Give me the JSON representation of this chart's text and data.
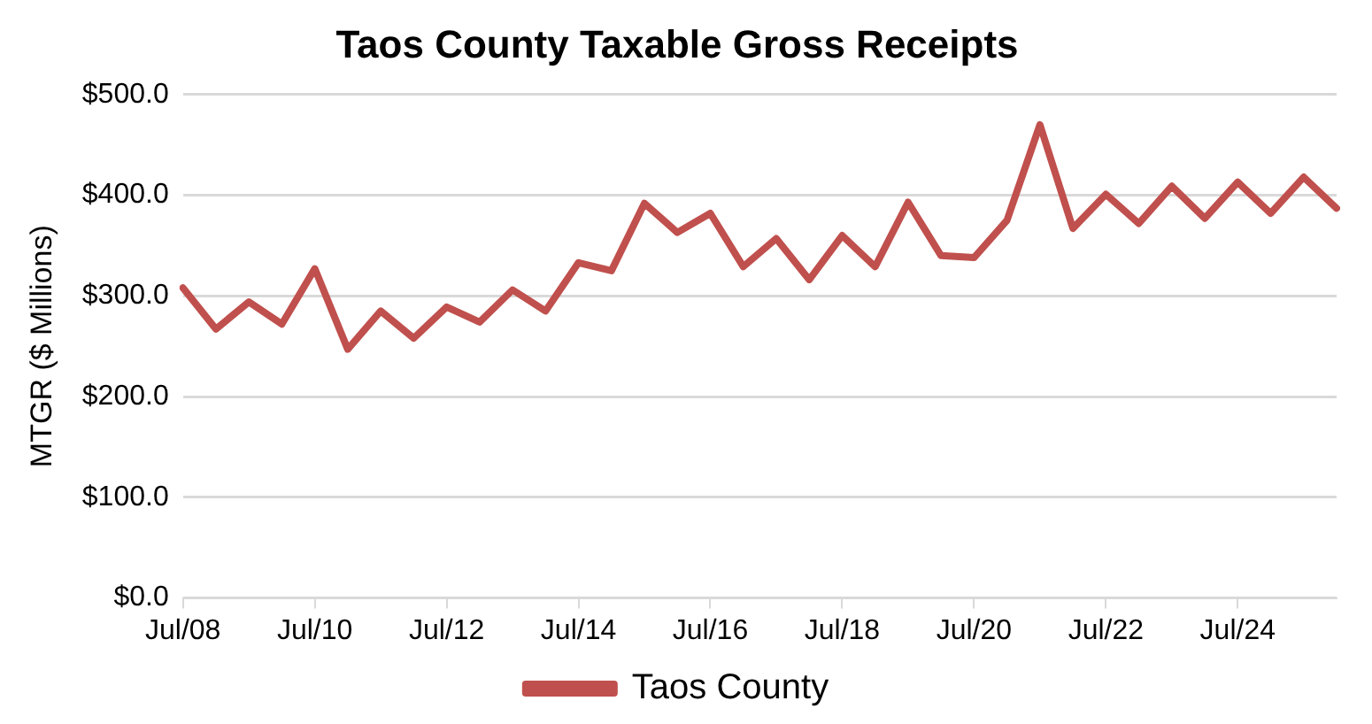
{
  "chart_data": {
    "type": "line",
    "title": "Taos County Taxable Gross Receipts",
    "ylabel": "MTGR ($ Millions)",
    "categories": [
      "Jul/08",
      null,
      null,
      null,
      "Jul/10",
      null,
      null,
      null,
      "Jul/12",
      null,
      null,
      null,
      "Jul/14",
      null,
      null,
      null,
      "Jul/16",
      null,
      null,
      null,
      "Jul/18",
      null,
      null,
      null,
      "Jul/20",
      null,
      null,
      null,
      "Jul/22",
      null,
      null,
      null,
      "Jul/24",
      null,
      null,
      null
    ],
    "series": [
      {
        "name": "Taos County",
        "color": "#c0504d",
        "values": [
          308,
          267,
          294,
          272,
          327,
          247,
          285,
          258,
          289,
          274,
          306,
          285,
          333,
          325,
          392,
          363,
          382,
          329,
          357,
          316,
          360,
          329,
          393,
          340,
          338,
          375,
          470,
          367,
          401,
          372,
          409,
          377,
          413,
          382,
          418,
          387
        ]
      }
    ],
    "ylim": [
      0,
      500
    ],
    "yticks": [
      {
        "value": 0,
        "label": "$0.0"
      },
      {
        "value": 100,
        "label": "$100.0"
      },
      {
        "value": 200,
        "label": "$200.0"
      },
      {
        "value": 300,
        "label": "$300.0"
      },
      {
        "value": 400,
        "label": "$400.0"
      },
      {
        "value": 500,
        "label": "$500.0"
      }
    ],
    "grid": "y",
    "legend": "bottom"
  }
}
